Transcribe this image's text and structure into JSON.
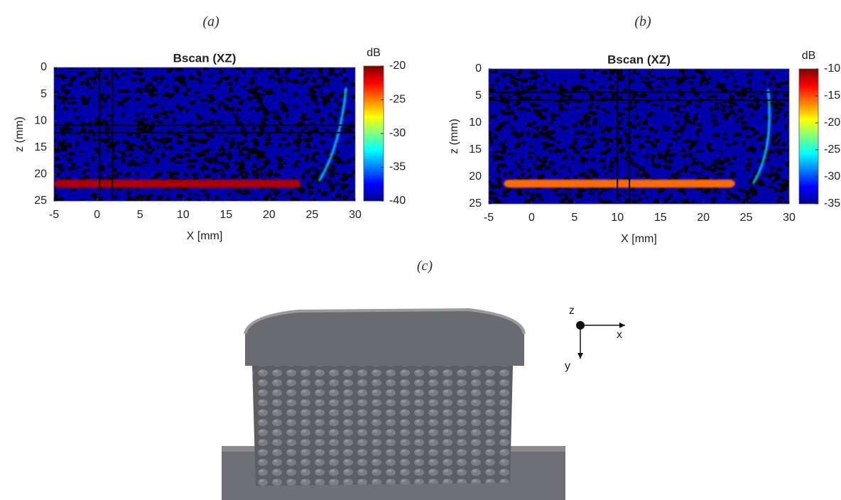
{
  "chart_data": [
    {
      "type": "heatmap",
      "panel_label": "(a)",
      "title": "Bscan (XZ)",
      "xlabel": "X [mm]",
      "ylabel": "z (mm)",
      "xlim": [
        -5,
        30
      ],
      "xticks": [
        -5,
        0,
        5,
        10,
        15,
        20,
        25,
        30
      ],
      "ylim": [
        25,
        0
      ],
      "yticks": [
        0,
        5,
        10,
        15,
        20,
        25
      ],
      "colorbar": {
        "label": "dB",
        "lim": [
          -40,
          -20
        ],
        "ticks": [
          -20,
          -25,
          -30,
          -35,
          -40
        ]
      },
      "cursor_x": [
        0.3,
        1.8
      ],
      "cursor_z": [
        10.8,
        12.2
      ]
    },
    {
      "type": "heatmap",
      "panel_label": "(b)",
      "title": "Bscan (XZ)",
      "xlabel": "X [mm]",
      "ylabel": "z (mm)",
      "xlim": [
        -5,
        30
      ],
      "xticks": [
        -5,
        0,
        5,
        10,
        15,
        20,
        25,
        30
      ],
      "ylim": [
        25,
        0
      ],
      "yticks": [
        0,
        5,
        10,
        15,
        20,
        25
      ],
      "colorbar": {
        "label": "dB",
        "lim": [
          -35,
          -10
        ],
        "ticks": [
          -10,
          -15,
          -20,
          -25,
          -30,
          -35
        ]
      },
      "cursor_x": [
        10,
        11.4
      ],
      "cursor_z": [
        4.3,
        5.8
      ]
    }
  ],
  "photo": {
    "panel_label": "(c)",
    "axis_labels": {
      "z": "z",
      "x": "x",
      "y": "y"
    }
  }
}
